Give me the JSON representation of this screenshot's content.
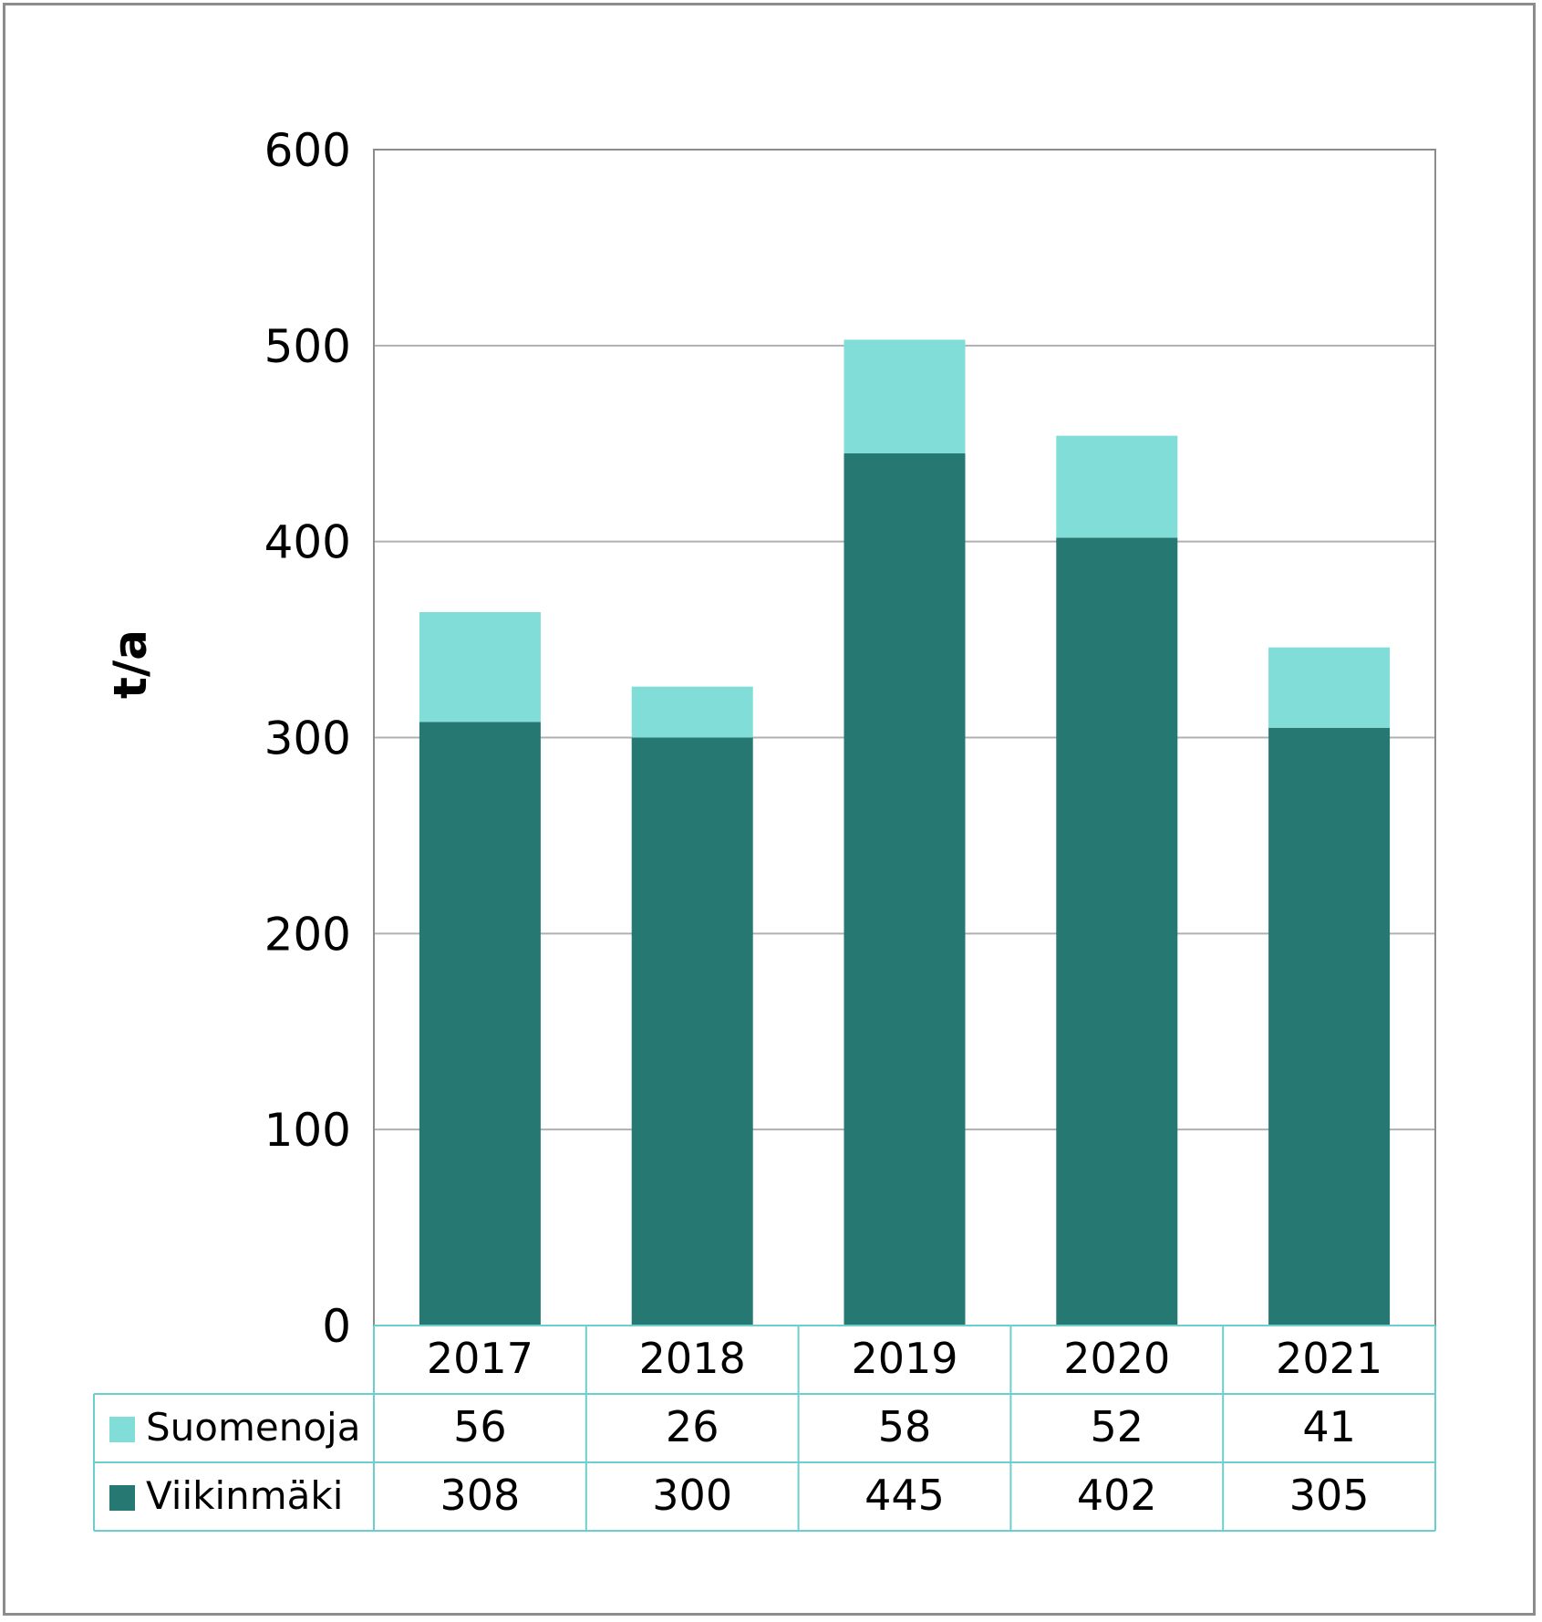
{
  "chart_data": {
    "type": "bar",
    "stacked": true,
    "ylabel": "t/a",
    "ylim": [
      0,
      600
    ],
    "yticks": [
      "0",
      "100",
      "200",
      "300",
      "400",
      "500",
      "600"
    ],
    "grid": true,
    "categories": [
      "2017",
      "2018",
      "2019",
      "2020",
      "2021"
    ],
    "series": [
      {
        "name": "Viikinmäki",
        "color": "#267873",
        "values": [
          308,
          300,
          445,
          402,
          305
        ],
        "labels": [
          "308",
          "300",
          "445",
          "402",
          "305"
        ]
      },
      {
        "name": "Suomenoja",
        "color": "#80DDD8",
        "values": [
          56,
          26,
          58,
          52,
          41
        ],
        "labels": [
          "56",
          "26",
          "58",
          "52",
          "41"
        ]
      }
    ],
    "data_table": true,
    "table_border_color": "#6BCFCF"
  }
}
